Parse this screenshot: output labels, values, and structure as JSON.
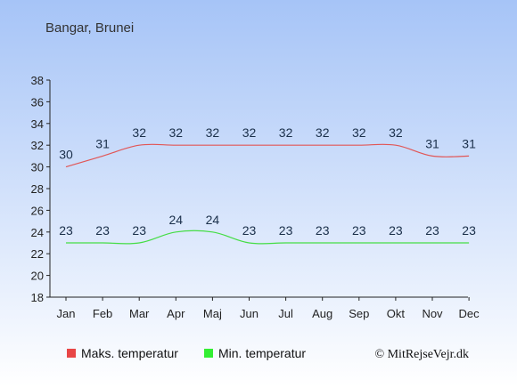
{
  "location_title": "Bangar, Brunei",
  "credit": "© MitRejseVejr.dk",
  "colors": {
    "background_top": "#a6c4f7",
    "background_bottom": "#ffffff",
    "max_line": "#e15656",
    "min_line": "#44dd44",
    "max_swatch": "#e84646",
    "min_swatch": "#33ee33",
    "label": "#1a2f4a"
  },
  "chart_data": {
    "type": "line",
    "categories": [
      "Jan",
      "Feb",
      "Mar",
      "Apr",
      "Maj",
      "Jun",
      "Jul",
      "Aug",
      "Sep",
      "Okt",
      "Nov",
      "Dec"
    ],
    "series": [
      {
        "name": "Maks. temperatur",
        "values": [
          30,
          31,
          32,
          32,
          32,
          32,
          32,
          32,
          32,
          32,
          31,
          31
        ]
      },
      {
        "name": "Min. temperatur",
        "values": [
          23,
          23,
          23,
          24,
          24,
          23,
          23,
          23,
          23,
          23,
          23,
          23
        ]
      }
    ],
    "ylim": [
      18,
      38
    ],
    "yticks": [
      "18",
      "20",
      "22",
      "24",
      "26",
      "28",
      "30",
      "32",
      "34",
      "36",
      "38"
    ],
    "grid": false,
    "legend_position": "bottom"
  }
}
